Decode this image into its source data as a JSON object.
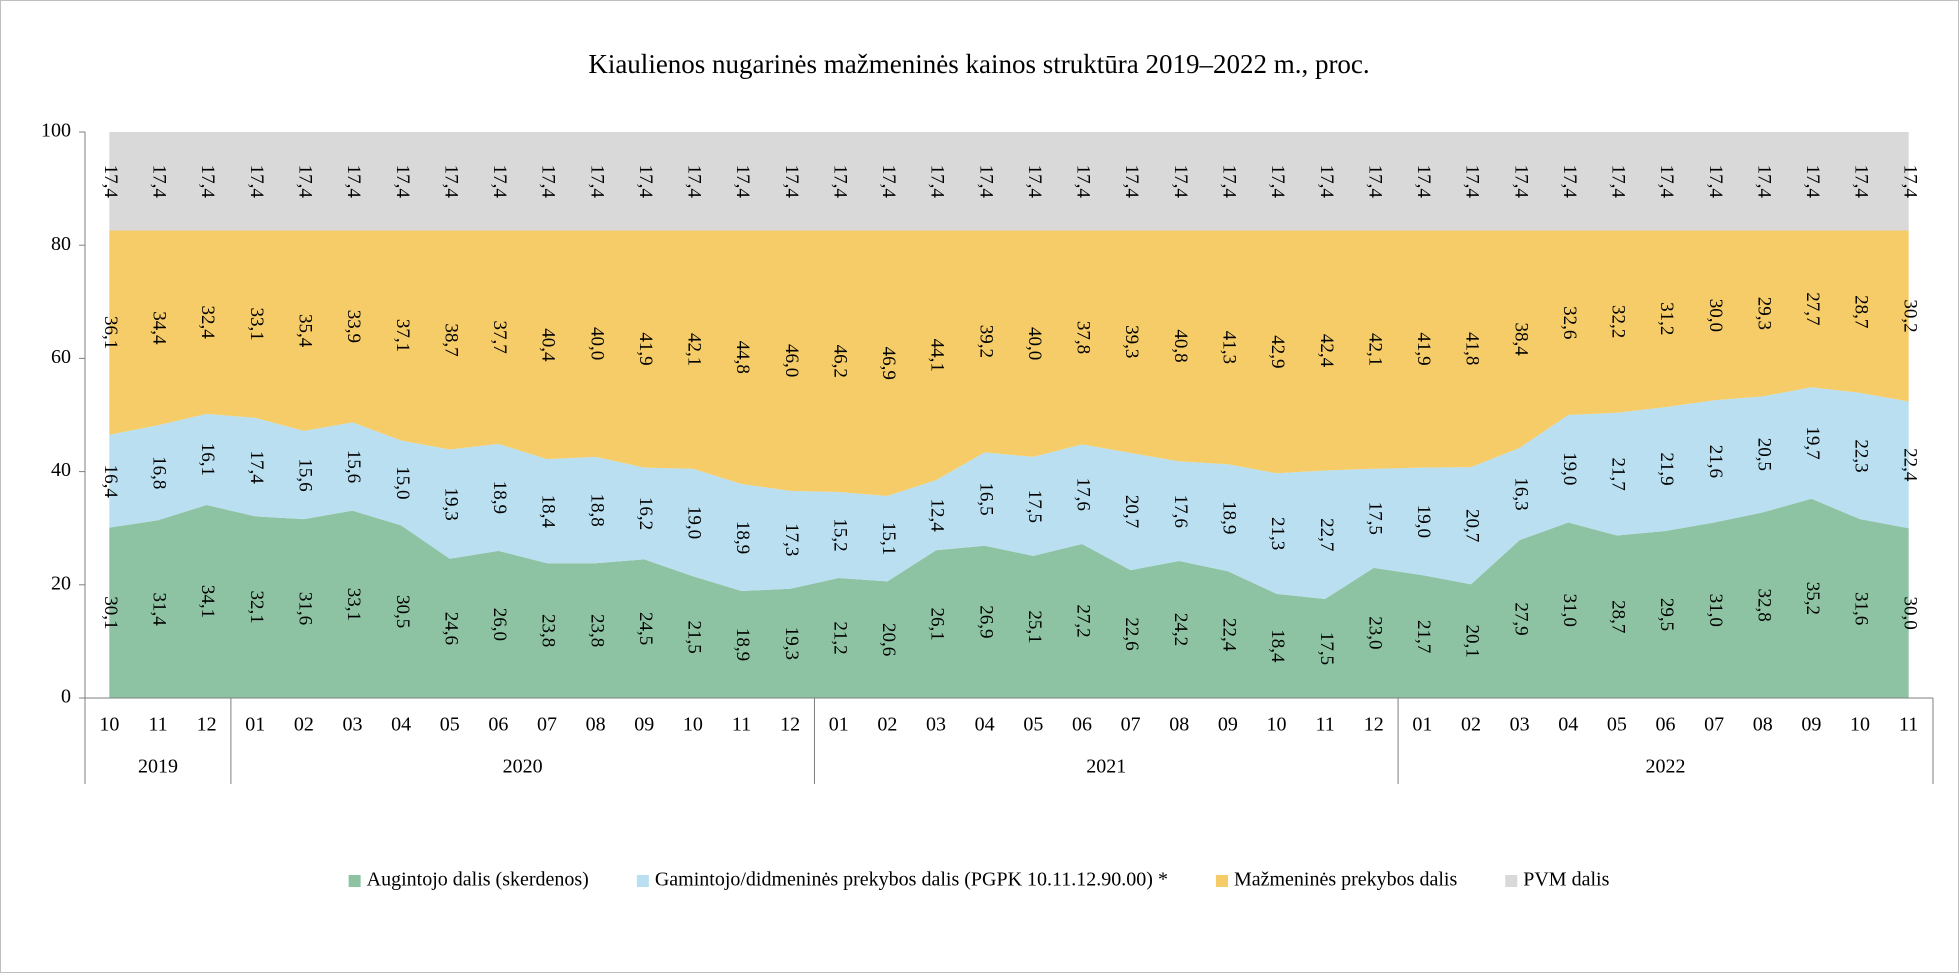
{
  "chart_data": {
    "type": "stacked_area",
    "title": "Kiaulienos nugarinės mažmeninės kainos struktūra 2019–2022 m., proc.",
    "categories": [
      "10",
      "11",
      "12",
      "01",
      "02",
      "03",
      "04",
      "05",
      "06",
      "07",
      "08",
      "09",
      "10",
      "11",
      "12",
      "01",
      "02",
      "03",
      "04",
      "05",
      "06",
      "07",
      "08",
      "09",
      "10",
      "11",
      "12",
      "01",
      "02",
      "03",
      "04",
      "05",
      "06",
      "07",
      "08",
      "09",
      "10",
      "11"
    ],
    "x_groups": [
      {
        "label": "2019",
        "size": 3
      },
      {
        "label": "2020",
        "size": 12
      },
      {
        "label": "2021",
        "size": 12
      },
      {
        "label": "2022",
        "size": 11
      }
    ],
    "ylim": [
      0,
      100
    ],
    "yticks": [
      0,
      20,
      40,
      60,
      80,
      100
    ],
    "grid": false,
    "legend": "bottom",
    "series": [
      {
        "name": "Augintojo dalis (skerdenos)",
        "color": "#8dc3a3",
        "values": [
          30.1,
          31.4,
          34.1,
          32.1,
          31.6,
          33.1,
          30.5,
          24.6,
          26.0,
          23.8,
          23.8,
          24.5,
          21.5,
          18.9,
          19.3,
          21.2,
          20.6,
          26.1,
          26.9,
          25.1,
          27.2,
          22.6,
          24.2,
          22.4,
          18.4,
          17.5,
          23.0,
          21.7,
          20.1,
          27.9,
          31.0,
          28.7,
          29.5,
          31.0,
          32.8,
          35.2,
          31.6,
          30.0
        ],
        "value_labels": [
          "30,1",
          "31,4",
          "34,1",
          "32,1",
          "31,6",
          "33,1",
          "30,5",
          "24,6",
          "26,0",
          "23,8",
          "23,8",
          "24,5",
          "21,5",
          "18,9",
          "19,3",
          "21,2",
          "20,6",
          "26,1",
          "26,9",
          "25,1",
          "27,2",
          "22,6",
          "24,2",
          "22,4",
          "18,4",
          "17,5",
          "23,0",
          "21,7",
          "20,1",
          "27,9",
          "31,0",
          "28,7",
          "29,5",
          "31,0",
          "32,8",
          "35,2",
          "31,6",
          "30,0"
        ]
      },
      {
        "name": "Gamintojo/didmeninės prekybos dalis (PGPK 10.11.12.90.00) *",
        "color": "#b9dff0",
        "values": [
          16.4,
          16.8,
          16.1,
          17.4,
          15.6,
          15.6,
          15.0,
          19.3,
          18.9,
          18.4,
          18.8,
          16.2,
          19.0,
          18.9,
          17.3,
          15.2,
          15.1,
          12.4,
          16.5,
          17.5,
          17.6,
          20.7,
          17.6,
          18.9,
          21.3,
          22.7,
          17.5,
          19.0,
          20.7,
          16.3,
          19.0,
          21.7,
          21.9,
          21.6,
          20.5,
          19.7,
          22.3,
          22.4
        ],
        "value_labels": [
          "16,4",
          "16,8",
          "16,1",
          "17,4",
          "15,6",
          "15,6",
          "15,0",
          "19,3",
          "18,9",
          "18,4",
          "18,8",
          "16,2",
          "19,0",
          "18,9",
          "17,3",
          "15,2",
          "15,1",
          "12,4",
          "16,5",
          "17,5",
          "17,6",
          "20,7",
          "17,6",
          "18,9",
          "21,3",
          "22,7",
          "17,5",
          "19,0",
          "20,7",
          "16,3",
          "19,0",
          "21,7",
          "21,9",
          "21,6",
          "20,5",
          "19,7",
          "22,3",
          "22,4"
        ]
      },
      {
        "name": "Mažmeninės prekybos dalis",
        "color": "#f5cc68",
        "values": [
          36.1,
          34.4,
          32.4,
          33.1,
          35.4,
          33.9,
          37.1,
          38.7,
          37.7,
          40.4,
          40.0,
          41.9,
          42.1,
          44.8,
          46.0,
          46.2,
          46.9,
          44.1,
          39.2,
          40.0,
          37.8,
          39.3,
          40.8,
          41.3,
          42.9,
          42.4,
          42.1,
          41.9,
          41.8,
          38.4,
          32.6,
          32.2,
          31.2,
          30.0,
          29.3,
          27.7,
          28.7,
          30.2
        ],
        "value_labels": [
          "36,1",
          "34,4",
          "32,4",
          "33,1",
          "35,4",
          "33,9",
          "37,1",
          "38,7",
          "37,7",
          "40,4",
          "40,0",
          "41,9",
          "42,1",
          "44,8",
          "46,0",
          "46,2",
          "46,9",
          "44,1",
          "39,2",
          "40,0",
          "37,8",
          "39,3",
          "40,8",
          "41,3",
          "42,9",
          "42,4",
          "42,1",
          "41,9",
          "41,8",
          "38,4",
          "32,6",
          "32,2",
          "31,2",
          "30,0",
          "29,3",
          "27,7",
          "28,7",
          "30,2"
        ]
      },
      {
        "name": "PVM dalis",
        "color": "#d9d9d9",
        "values": [
          17.4,
          17.4,
          17.4,
          17.4,
          17.4,
          17.4,
          17.4,
          17.4,
          17.4,
          17.4,
          17.4,
          17.4,
          17.4,
          17.4,
          17.4,
          17.4,
          17.4,
          17.4,
          17.4,
          17.4,
          17.4,
          17.4,
          17.4,
          17.4,
          17.4,
          17.4,
          17.4,
          17.4,
          17.4,
          17.4,
          17.4,
          17.4,
          17.4,
          17.4,
          17.4,
          17.4,
          17.4,
          17.4
        ],
        "value_labels": [
          "17,4",
          "17,4",
          "17,4",
          "17,4",
          "17,4",
          "17,4",
          "17,4",
          "17,4",
          "17,4",
          "17,4",
          "17,4",
          "17,4",
          "17,4",
          "17,4",
          "17,4",
          "17,4",
          "17,4",
          "17,4",
          "17,4",
          "17,4",
          "17,4",
          "17,4",
          "17,4",
          "17,4",
          "17,4",
          "17,4",
          "17,4",
          "17,4",
          "17,4",
          "17,4",
          "17,4",
          "17,4",
          "17,4",
          "17,4",
          "17,4",
          "17,4",
          "17,4",
          "17,4"
        ]
      }
    ]
  }
}
